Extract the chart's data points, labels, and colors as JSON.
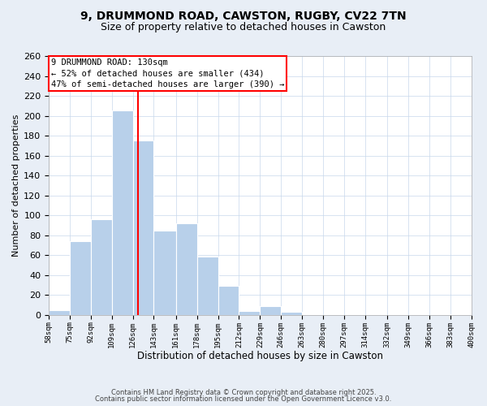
{
  "title1": "9, DRUMMOND ROAD, CAWSTON, RUGBY, CV22 7TN",
  "title2": "Size of property relative to detached houses in Cawston",
  "xlabel": "Distribution of detached houses by size in Cawston",
  "ylabel": "Number of detached properties",
  "bin_edges": [
    58,
    75,
    92,
    109,
    126,
    143,
    161,
    178,
    195,
    212,
    229,
    246,
    263,
    280,
    297,
    314,
    332,
    349,
    366,
    383,
    400
  ],
  "bar_heights": [
    5,
    74,
    96,
    205,
    175,
    85,
    92,
    59,
    29,
    4,
    9,
    3,
    0,
    0,
    0,
    0,
    0,
    0,
    0,
    1
  ],
  "bar_color": "#b8d0ea",
  "vline_x": 130,
  "vline_color": "red",
  "annotation_line1": "9 DRUMMOND ROAD: 130sqm",
  "annotation_line2": "← 52% of detached houses are smaller (434)",
  "annotation_line3": "47% of semi-detached houses are larger (390) →",
  "annotation_box_color": "white",
  "annotation_box_edgecolor": "red",
  "ylim": [
    0,
    260
  ],
  "yticks": [
    0,
    20,
    40,
    60,
    80,
    100,
    120,
    140,
    160,
    180,
    200,
    220,
    240,
    260
  ],
  "tick_labels": [
    "58sqm",
    "75sqm",
    "92sqm",
    "109sqm",
    "126sqm",
    "143sqm",
    "161sqm",
    "178sqm",
    "195sqm",
    "212sqm",
    "229sqm",
    "246sqm",
    "263sqm",
    "280sqm",
    "297sqm",
    "314sqm",
    "332sqm",
    "349sqm",
    "366sqm",
    "383sqm",
    "400sqm"
  ],
  "footer1": "Contains HM Land Registry data © Crown copyright and database right 2025.",
  "footer2": "Contains public sector information licensed under the Open Government Licence v3.0.",
  "background_color": "#e8eef6",
  "plot_background": "white",
  "grid_color": "#c8d8ec",
  "title1_fontsize": 10,
  "title2_fontsize": 9
}
